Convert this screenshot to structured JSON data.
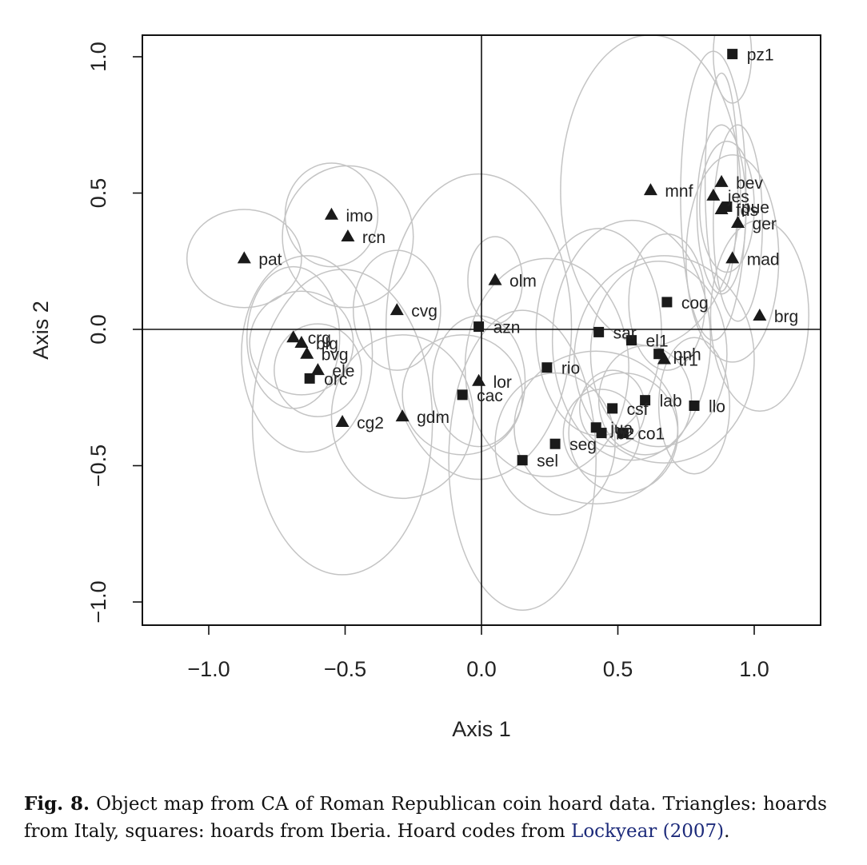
{
  "chart_data": {
    "type": "scatter",
    "xlabel": "Axis 1",
    "ylabel": "Axis 2",
    "xlim": [
      -1.25,
      1.25
    ],
    "ylim": [
      -1.08,
      1.08
    ],
    "xticks": [
      -1.0,
      -0.5,
      0.0,
      0.5,
      1.0
    ],
    "yticks": [
      -1.0,
      -0.5,
      0.0,
      0.5,
      1.0
    ],
    "xtick_labels": [
      "−1.0",
      "−0.5",
      "0.0",
      "0.5",
      "1.0"
    ],
    "ytick_labels": [
      "−1.0",
      "−0.5",
      "0.0",
      "0.5",
      "1.0"
    ],
    "reference_lines": {
      "x": 0,
      "y": 0
    },
    "grid": false,
    "colors": {
      "points": "#1a1a1a",
      "ellipses": "#c4c4c4",
      "frame": "#111111"
    },
    "series": [
      {
        "marker": "triangle",
        "points": [
          {
            "label": "pat",
            "x": -0.87,
            "y": 0.26
          },
          {
            "label": "imo",
            "x": -0.55,
            "y": 0.42
          },
          {
            "label": "rcn",
            "x": -0.49,
            "y": 0.34
          },
          {
            "label": "cvg",
            "x": -0.31,
            "y": 0.07
          },
          {
            "label": "crg",
            "x": -0.69,
            "y": -0.03
          },
          {
            "label": "blg",
            "x": -0.66,
            "y": -0.05
          },
          {
            "label": "bvg",
            "x": -0.64,
            "y": -0.09
          },
          {
            "label": "ele",
            "x": -0.6,
            "y": -0.15
          },
          {
            "label": "cg2",
            "x": -0.51,
            "y": -0.34
          },
          {
            "label": "gdm",
            "x": -0.29,
            "y": -0.32
          },
          {
            "label": "olm",
            "x": 0.05,
            "y": 0.18
          },
          {
            "label": "lor",
            "x": -0.01,
            "y": -0.19
          },
          {
            "label": "mnf",
            "x": 0.62,
            "y": 0.51
          },
          {
            "label": "bev",
            "x": 0.88,
            "y": 0.54
          },
          {
            "label": "jes",
            "x": 0.85,
            "y": 0.49
          },
          {
            "label": "fds",
            "x": 0.88,
            "y": 0.44
          },
          {
            "label": "ger",
            "x": 0.94,
            "y": 0.39
          },
          {
            "label": "mad",
            "x": 0.92,
            "y": 0.26
          },
          {
            "label": "brg",
            "x": 1.02,
            "y": 0.05
          },
          {
            "label": "tr1",
            "x": 0.67,
            "y": -0.11
          }
        ]
      },
      {
        "marker": "square",
        "points": [
          {
            "label": "pz1",
            "x": 0.92,
            "y": 1.01
          },
          {
            "label": "pue",
            "x": 0.9,
            "y": 0.45
          },
          {
            "label": "cog",
            "x": 0.68,
            "y": 0.1
          },
          {
            "label": "azn",
            "x": -0.01,
            "y": 0.01
          },
          {
            "label": "sar",
            "x": 0.43,
            "y": -0.01
          },
          {
            "label": "el1",
            "x": 0.55,
            "y": -0.04
          },
          {
            "label": "pnh",
            "x": 0.65,
            "y": -0.09
          },
          {
            "label": "rio",
            "x": 0.24,
            "y": -0.14
          },
          {
            "label": "orc",
            "x": -0.63,
            "y": -0.18
          },
          {
            "label": "cac",
            "x": -0.07,
            "y": -0.24
          },
          {
            "label": "lab",
            "x": 0.6,
            "y": -0.26
          },
          {
            "label": "llo",
            "x": 0.78,
            "y": -0.28
          },
          {
            "label": "csf",
            "x": 0.48,
            "y": -0.29
          },
          {
            "label": "jua",
            "x": 0.42,
            "y": -0.36
          },
          {
            "label": "b2",
            "x": 0.44,
            "y": -0.38
          },
          {
            "label": "co1",
            "x": 0.52,
            "y": -0.38
          },
          {
            "label": "seg",
            "x": 0.27,
            "y": -0.42
          },
          {
            "label": "sel",
            "x": 0.15,
            "y": -0.48
          }
        ]
      }
    ],
    "confidence_ellipses": [
      {
        "label": "pat",
        "cx": -0.87,
        "cy": 0.26,
        "rx": 0.21,
        "ry": 0.18
      },
      {
        "label": "imo",
        "cx": -0.55,
        "cy": 0.42,
        "rx": 0.17,
        "ry": 0.19
      },
      {
        "label": "rcn",
        "cx": -0.49,
        "cy": 0.34,
        "rx": 0.24,
        "ry": 0.26
      },
      {
        "label": "cvg",
        "cx": -0.31,
        "cy": 0.07,
        "rx": 0.16,
        "ry": 0.22
      },
      {
        "label": "crg",
        "cx": -0.69,
        "cy": -0.03,
        "rx": 0.17,
        "ry": 0.26
      },
      {
        "label": "blg",
        "cx": -0.66,
        "cy": -0.05,
        "rx": 0.19,
        "ry": 0.19
      },
      {
        "label": "bvg",
        "cx": -0.64,
        "cy": -0.09,
        "rx": 0.24,
        "ry": 0.36
      },
      {
        "label": "ele",
        "cx": -0.6,
        "cy": -0.15,
        "rx": 0.16,
        "ry": 0.17
      },
      {
        "label": "cg2",
        "cx": -0.51,
        "cy": -0.34,
        "rx": 0.33,
        "ry": 0.56
      },
      {
        "label": "gdm",
        "cx": -0.29,
        "cy": -0.32,
        "rx": 0.26,
        "ry": 0.3
      },
      {
        "label": "olm",
        "cx": 0.05,
        "cy": 0.18,
        "rx": 0.1,
        "ry": 0.16
      },
      {
        "label": "lor",
        "cx": -0.01,
        "cy": -0.19,
        "rx": 0.17,
        "ry": 0.24
      },
      {
        "label": "azn",
        "cx": -0.01,
        "cy": 0.01,
        "rx": 0.34,
        "ry": 0.56
      },
      {
        "label": "cac",
        "cx": -0.07,
        "cy": -0.24,
        "rx": 0.22,
        "ry": 0.22
      },
      {
        "label": "rio",
        "cx": 0.24,
        "cy": -0.14,
        "rx": 0.3,
        "ry": 0.4
      },
      {
        "label": "sel",
        "cx": 0.15,
        "cy": -0.48,
        "rx": 0.27,
        "ry": 0.55
      },
      {
        "label": "seg",
        "cx": 0.27,
        "cy": -0.42,
        "rx": 0.22,
        "ry": 0.26
      },
      {
        "label": "sar",
        "cx": 0.43,
        "cy": -0.01,
        "rx": 0.23,
        "ry": 0.38
      },
      {
        "label": "jua",
        "cx": 0.42,
        "cy": -0.36,
        "rx": 0.3,
        "ry": 0.28
      },
      {
        "label": "b2",
        "cx": 0.44,
        "cy": -0.38,
        "rx": 0.14,
        "ry": 0.16
      },
      {
        "label": "co1",
        "cx": 0.52,
        "cy": -0.38,
        "rx": 0.2,
        "ry": 0.22
      },
      {
        "label": "csf",
        "cx": 0.48,
        "cy": -0.29,
        "rx": 0.12,
        "ry": 0.14
      },
      {
        "label": "lab",
        "cx": 0.6,
        "cy": -0.26,
        "rx": 0.17,
        "ry": 0.2
      },
      {
        "label": "llo",
        "cx": 0.78,
        "cy": -0.28,
        "rx": 0.13,
        "ry": 0.25
      },
      {
        "label": "el1",
        "cx": 0.55,
        "cy": -0.04,
        "rx": 0.29,
        "ry": 0.44
      },
      {
        "label": "pnh",
        "cx": 0.65,
        "cy": -0.09,
        "rx": 0.25,
        "ry": 0.34
      },
      {
        "label": "tr1",
        "cx": 0.67,
        "cy": -0.11,
        "rx": 0.33,
        "ry": 0.38
      },
      {
        "label": "cog",
        "cx": 0.68,
        "cy": 0.1,
        "rx": 0.14,
        "ry": 0.25
      },
      {
        "label": "mnf",
        "cx": 0.62,
        "cy": 0.51,
        "rx": 0.33,
        "ry": 0.57
      },
      {
        "label": "bev",
        "cx": 0.88,
        "cy": 0.54,
        "rx": 0.06,
        "ry": 0.4
      },
      {
        "label": "jes",
        "cx": 0.85,
        "cy": 0.49,
        "rx": 0.12,
        "ry": 0.53
      },
      {
        "label": "pue",
        "cx": 0.9,
        "cy": 0.45,
        "rx": 0.1,
        "ry": 0.24
      },
      {
        "label": "fds",
        "cx": 0.88,
        "cy": 0.44,
        "rx": 0.09,
        "ry": 0.31
      },
      {
        "label": "ger",
        "cx": 0.94,
        "cy": 0.39,
        "rx": 0.09,
        "ry": 0.36
      },
      {
        "label": "mad",
        "cx": 0.92,
        "cy": 0.26,
        "rx": 0.17,
        "ry": 0.38
      },
      {
        "label": "brg",
        "cx": 1.02,
        "cy": 0.05,
        "rx": 0.18,
        "ry": 0.35
      },
      {
        "label": "pz1",
        "cx": 0.92,
        "cy": 1.01,
        "rx": 0.07,
        "ry": 0.18
      }
    ]
  },
  "caption": {
    "label": "Fig. 8.",
    "text": " Object map from CA of Roman Republican coin hoard data. Triangles: hoards from Italy, squares: hoards from Iberia. Hoard codes from ",
    "reference": "Lockyear (2007)",
    "end": "."
  }
}
